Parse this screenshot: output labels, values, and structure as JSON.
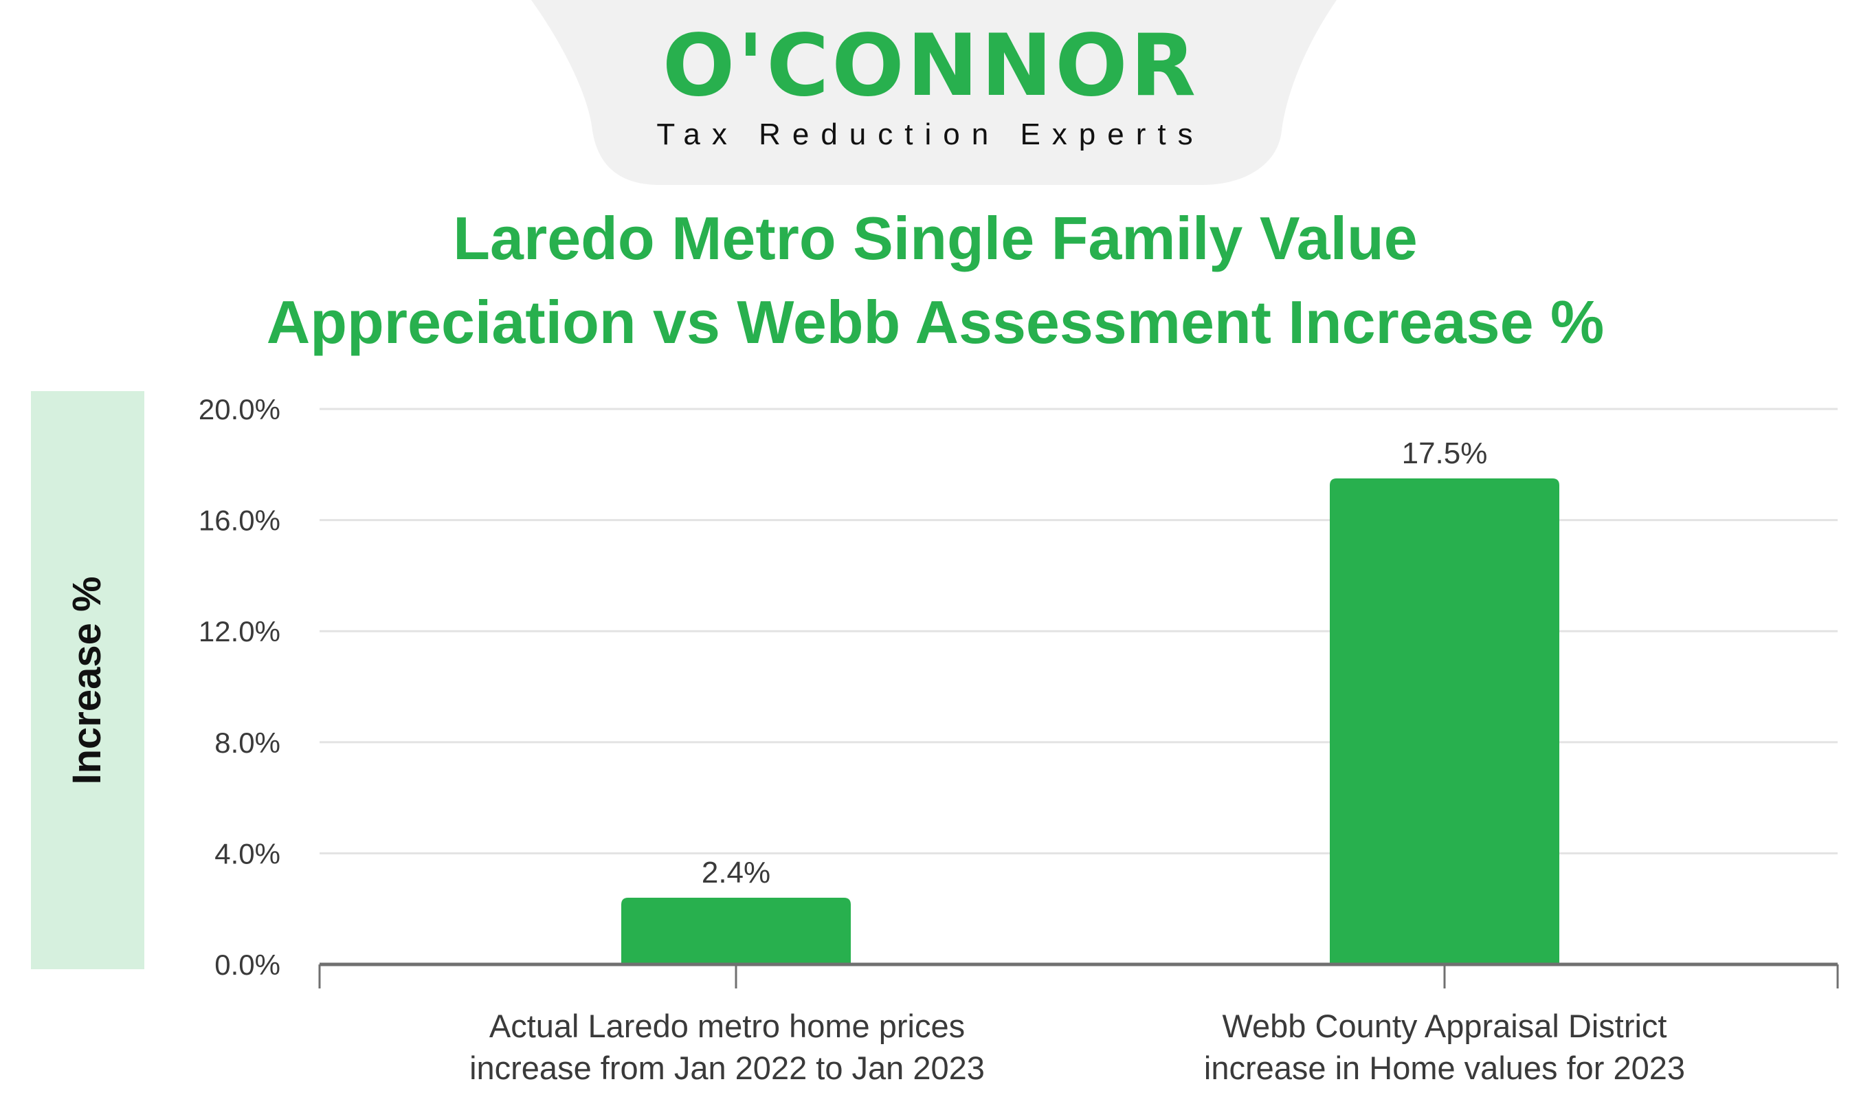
{
  "logo": {
    "name": "O'CONNOR",
    "tagline": "Tax Reduction Experts"
  },
  "colors": {
    "bar": "#28b04e",
    "title": "#28b04e",
    "ylabel_box": "#d6f0de",
    "grid": "#e3e3e3",
    "axis": "#707070",
    "text": "#3a3a3a"
  },
  "chart_data": {
    "type": "bar",
    "title_lines": [
      "Laredo Metro Single Family Value",
      "Appreciation vs Webb Assessment Increase %"
    ],
    "ylabel": "Increase %",
    "xlabel": "",
    "categories": [
      [
        "Actual Laredo metro home prices",
        "increase from Jan 2022 to Jan 2023"
      ],
      [
        "Webb County Appraisal District",
        "increase in Home values for 2023"
      ]
    ],
    "values": [
      2.4,
      17.5
    ],
    "data_labels": [
      "2.4%",
      "17.5%"
    ],
    "ylim": [
      0,
      20
    ],
    "yticks": [
      0,
      4,
      8,
      12,
      16,
      20
    ],
    "ytick_labels": [
      "0.0%",
      "4.0%",
      "8.0%",
      "12.0%",
      "16.0%",
      "20.0%"
    ],
    "grid": true,
    "legend": "none"
  }
}
